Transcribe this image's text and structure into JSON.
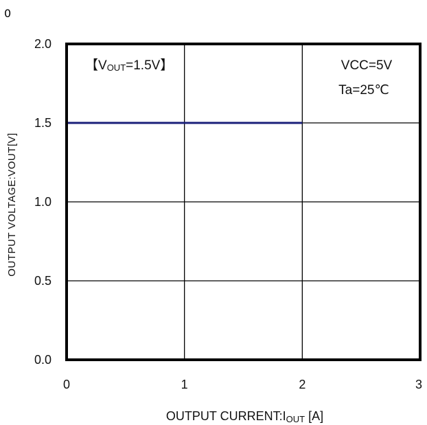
{
  "corner_label": "0",
  "chart_data": {
    "type": "line",
    "xlabel": "OUTPUT CURRENT:I",
    "xlabel_sub": "OUT",
    "xlabel_unit": " [A]",
    "ylabel": "OUTPUT VOLTAGE:VOUT[V]",
    "xlim": [
      0,
      3
    ],
    "ylim": [
      0,
      2.0
    ],
    "x_ticks": [
      "0",
      "1",
      "2",
      "3"
    ],
    "y_ticks": [
      "0.0",
      "0.5",
      "1.0",
      "1.5",
      "2.0"
    ],
    "grid": true,
    "series": [
      {
        "x": [
          0,
          2
        ],
        "y": [
          1.5,
          1.5
        ],
        "color": "#1a1f7a"
      }
    ],
    "annotations": {
      "condition_prefix": "【V",
      "condition_sub": "OUT",
      "condition_value": "=1.5V】",
      "vcc": "VCC=5V",
      "ta": "Ta=25℃"
    }
  }
}
